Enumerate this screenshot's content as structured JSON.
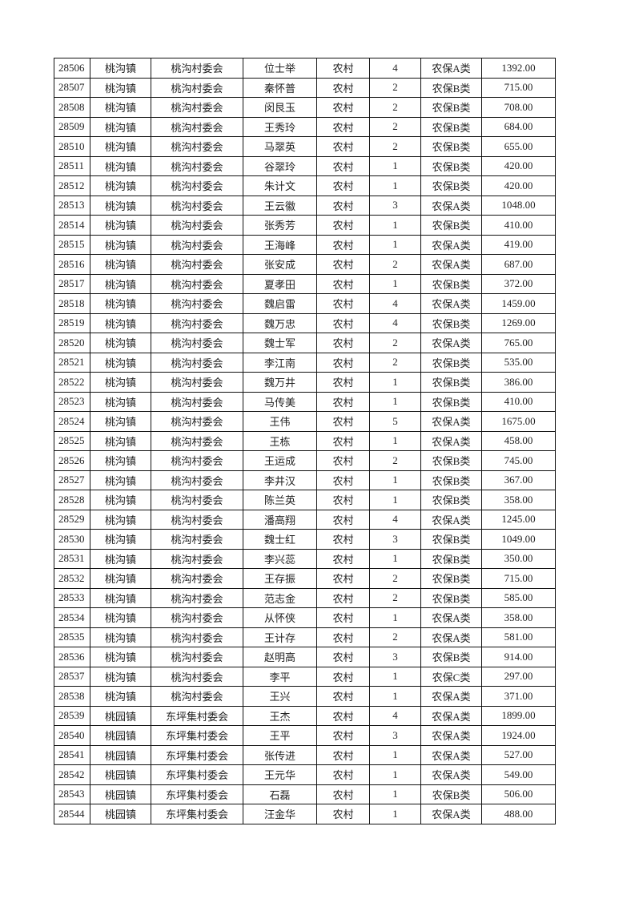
{
  "table": {
    "rows": [
      [
        "28506",
        "桃沟镇",
        "桃沟村委会",
        "位士举",
        "农村",
        "4",
        "农保A类",
        "1392.00"
      ],
      [
        "28507",
        "桃沟镇",
        "桃沟村委会",
        "秦怀普",
        "农村",
        "2",
        "农保B类",
        "715.00"
      ],
      [
        "28508",
        "桃沟镇",
        "桃沟村委会",
        "闵艮玉",
        "农村",
        "2",
        "农保B类",
        "708.00"
      ],
      [
        "28509",
        "桃沟镇",
        "桃沟村委会",
        "王秀玲",
        "农村",
        "2",
        "农保B类",
        "684.00"
      ],
      [
        "28510",
        "桃沟镇",
        "桃沟村委会",
        "马翠英",
        "农村",
        "2",
        "农保B类",
        "655.00"
      ],
      [
        "28511",
        "桃沟镇",
        "桃沟村委会",
        "谷翠玲",
        "农村",
        "1",
        "农保B类",
        "420.00"
      ],
      [
        "28512",
        "桃沟镇",
        "桃沟村委会",
        "朱计文",
        "农村",
        "1",
        "农保B类",
        "420.00"
      ],
      [
        "28513",
        "桃沟镇",
        "桃沟村委会",
        "王云徽",
        "农村",
        "3",
        "农保A类",
        "1048.00"
      ],
      [
        "28514",
        "桃沟镇",
        "桃沟村委会",
        "张秀芳",
        "农村",
        "1",
        "农保B类",
        "410.00"
      ],
      [
        "28515",
        "桃沟镇",
        "桃沟村委会",
        "王海峰",
        "农村",
        "1",
        "农保A类",
        "419.00"
      ],
      [
        "28516",
        "桃沟镇",
        "桃沟村委会",
        "张安成",
        "农村",
        "2",
        "农保A类",
        "687.00"
      ],
      [
        "28517",
        "桃沟镇",
        "桃沟村委会",
        "夏孝田",
        "农村",
        "1",
        "农保B类",
        "372.00"
      ],
      [
        "28518",
        "桃沟镇",
        "桃沟村委会",
        "魏启雷",
        "农村",
        "4",
        "农保A类",
        "1459.00"
      ],
      [
        "28519",
        "桃沟镇",
        "桃沟村委会",
        "魏万忠",
        "农村",
        "4",
        "农保B类",
        "1269.00"
      ],
      [
        "28520",
        "桃沟镇",
        "桃沟村委会",
        "魏士军",
        "农村",
        "2",
        "农保A类",
        "765.00"
      ],
      [
        "28521",
        "桃沟镇",
        "桃沟村委会",
        "李江南",
        "农村",
        "2",
        "农保B类",
        "535.00"
      ],
      [
        "28522",
        "桃沟镇",
        "桃沟村委会",
        "魏万井",
        "农村",
        "1",
        "农保B类",
        "386.00"
      ],
      [
        "28523",
        "桃沟镇",
        "桃沟村委会",
        "马传美",
        "农村",
        "1",
        "农保B类",
        "410.00"
      ],
      [
        "28524",
        "桃沟镇",
        "桃沟村委会",
        "王伟",
        "农村",
        "5",
        "农保A类",
        "1675.00"
      ],
      [
        "28525",
        "桃沟镇",
        "桃沟村委会",
        "王栋",
        "农村",
        "1",
        "农保A类",
        "458.00"
      ],
      [
        "28526",
        "桃沟镇",
        "桃沟村委会",
        "王运成",
        "农村",
        "2",
        "农保B类",
        "745.00"
      ],
      [
        "28527",
        "桃沟镇",
        "桃沟村委会",
        "李井汉",
        "农村",
        "1",
        "农保B类",
        "367.00"
      ],
      [
        "28528",
        "桃沟镇",
        "桃沟村委会",
        "陈兰英",
        "农村",
        "1",
        "农保B类",
        "358.00"
      ],
      [
        "28529",
        "桃沟镇",
        "桃沟村委会",
        "潘高翔",
        "农村",
        "4",
        "农保A类",
        "1245.00"
      ],
      [
        "28530",
        "桃沟镇",
        "桃沟村委会",
        "魏士红",
        "农村",
        "3",
        "农保B类",
        "1049.00"
      ],
      [
        "28531",
        "桃沟镇",
        "桃沟村委会",
        "李兴蕊",
        "农村",
        "1",
        "农保B类",
        "350.00"
      ],
      [
        "28532",
        "桃沟镇",
        "桃沟村委会",
        "王存振",
        "农村",
        "2",
        "农保B类",
        "715.00"
      ],
      [
        "28533",
        "桃沟镇",
        "桃沟村委会",
        "范志金",
        "农村",
        "2",
        "农保B类",
        "585.00"
      ],
      [
        "28534",
        "桃沟镇",
        "桃沟村委会",
        "从怀侠",
        "农村",
        "1",
        "农保A类",
        "358.00"
      ],
      [
        "28535",
        "桃沟镇",
        "桃沟村委会",
        "王计存",
        "农村",
        "2",
        "农保A类",
        "581.00"
      ],
      [
        "28536",
        "桃沟镇",
        "桃沟村委会",
        "赵明高",
        "农村",
        "3",
        "农保B类",
        "914.00"
      ],
      [
        "28537",
        "桃沟镇",
        "桃沟村委会",
        "李平",
        "农村",
        "1",
        "农保C类",
        "297.00"
      ],
      [
        "28538",
        "桃沟镇",
        "桃沟村委会",
        "王兴",
        "农村",
        "1",
        "农保A类",
        "371.00"
      ],
      [
        "28539",
        "桃园镇",
        "东坪集村委会",
        "王杰",
        "农村",
        "4",
        "农保A类",
        "1899.00"
      ],
      [
        "28540",
        "桃园镇",
        "东坪集村委会",
        "王平",
        "农村",
        "3",
        "农保A类",
        "1924.00"
      ],
      [
        "28541",
        "桃园镇",
        "东坪集村委会",
        "张传进",
        "农村",
        "1",
        "农保A类",
        "527.00"
      ],
      [
        "28542",
        "桃园镇",
        "东坪集村委会",
        "王元华",
        "农村",
        "1",
        "农保A类",
        "549.00"
      ],
      [
        "28543",
        "桃园镇",
        "东坪集村委会",
        "石磊",
        "农村",
        "1",
        "农保B类",
        "506.00"
      ],
      [
        "28544",
        "桃园镇",
        "东坪集村委会",
        "汪金华",
        "农村",
        "1",
        "农保A类",
        "488.00"
      ]
    ]
  }
}
